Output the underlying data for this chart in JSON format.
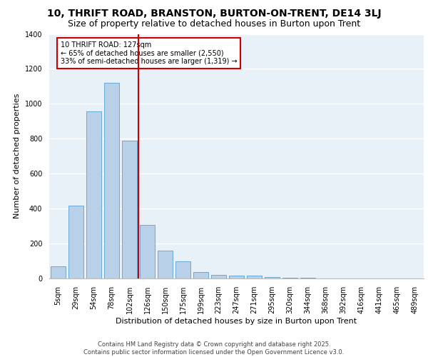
{
  "title": "10, THRIFT ROAD, BRANSTON, BURTON-ON-TRENT, DE14 3LJ",
  "subtitle": "Size of property relative to detached houses in Burton upon Trent",
  "xlabel": "Distribution of detached houses by size in Burton upon Trent",
  "ylabel": "Number of detached properties",
  "categories": [
    "5sqm",
    "29sqm",
    "54sqm",
    "78sqm",
    "102sqm",
    "126sqm",
    "150sqm",
    "175sqm",
    "199sqm",
    "223sqm",
    "247sqm",
    "271sqm",
    "295sqm",
    "320sqm",
    "344sqm",
    "368sqm",
    "392sqm",
    "416sqm",
    "441sqm",
    "465sqm",
    "489sqm"
  ],
  "values": [
    70,
    415,
    955,
    1120,
    790,
    305,
    160,
    100,
    35,
    20,
    18,
    15,
    10,
    5,
    3,
    2,
    1,
    1,
    0,
    0,
    0
  ],
  "bar_color": "#b8d0e8",
  "bar_edge_color": "#6aaad4",
  "highlight_color": "#cc0000",
  "annotation_text": "10 THRIFT ROAD: 127sqm\n← 65% of detached houses are smaller (2,550)\n33% of semi-detached houses are larger (1,319) →",
  "annotation_box_color": "#cc0000",
  "ylim": [
    0,
    1400
  ],
  "yticks": [
    0,
    200,
    400,
    600,
    800,
    1000,
    1200,
    1400
  ],
  "background_color": "#e8f0f8",
  "footer": "Contains HM Land Registry data © Crown copyright and database right 2025.\nContains public sector information licensed under the Open Government Licence v3.0.",
  "title_fontsize": 10,
  "subtitle_fontsize": 9,
  "xlabel_fontsize": 8,
  "ylabel_fontsize": 8,
  "tick_fontsize": 7,
  "footer_fontsize": 6,
  "annotation_fontsize": 7
}
